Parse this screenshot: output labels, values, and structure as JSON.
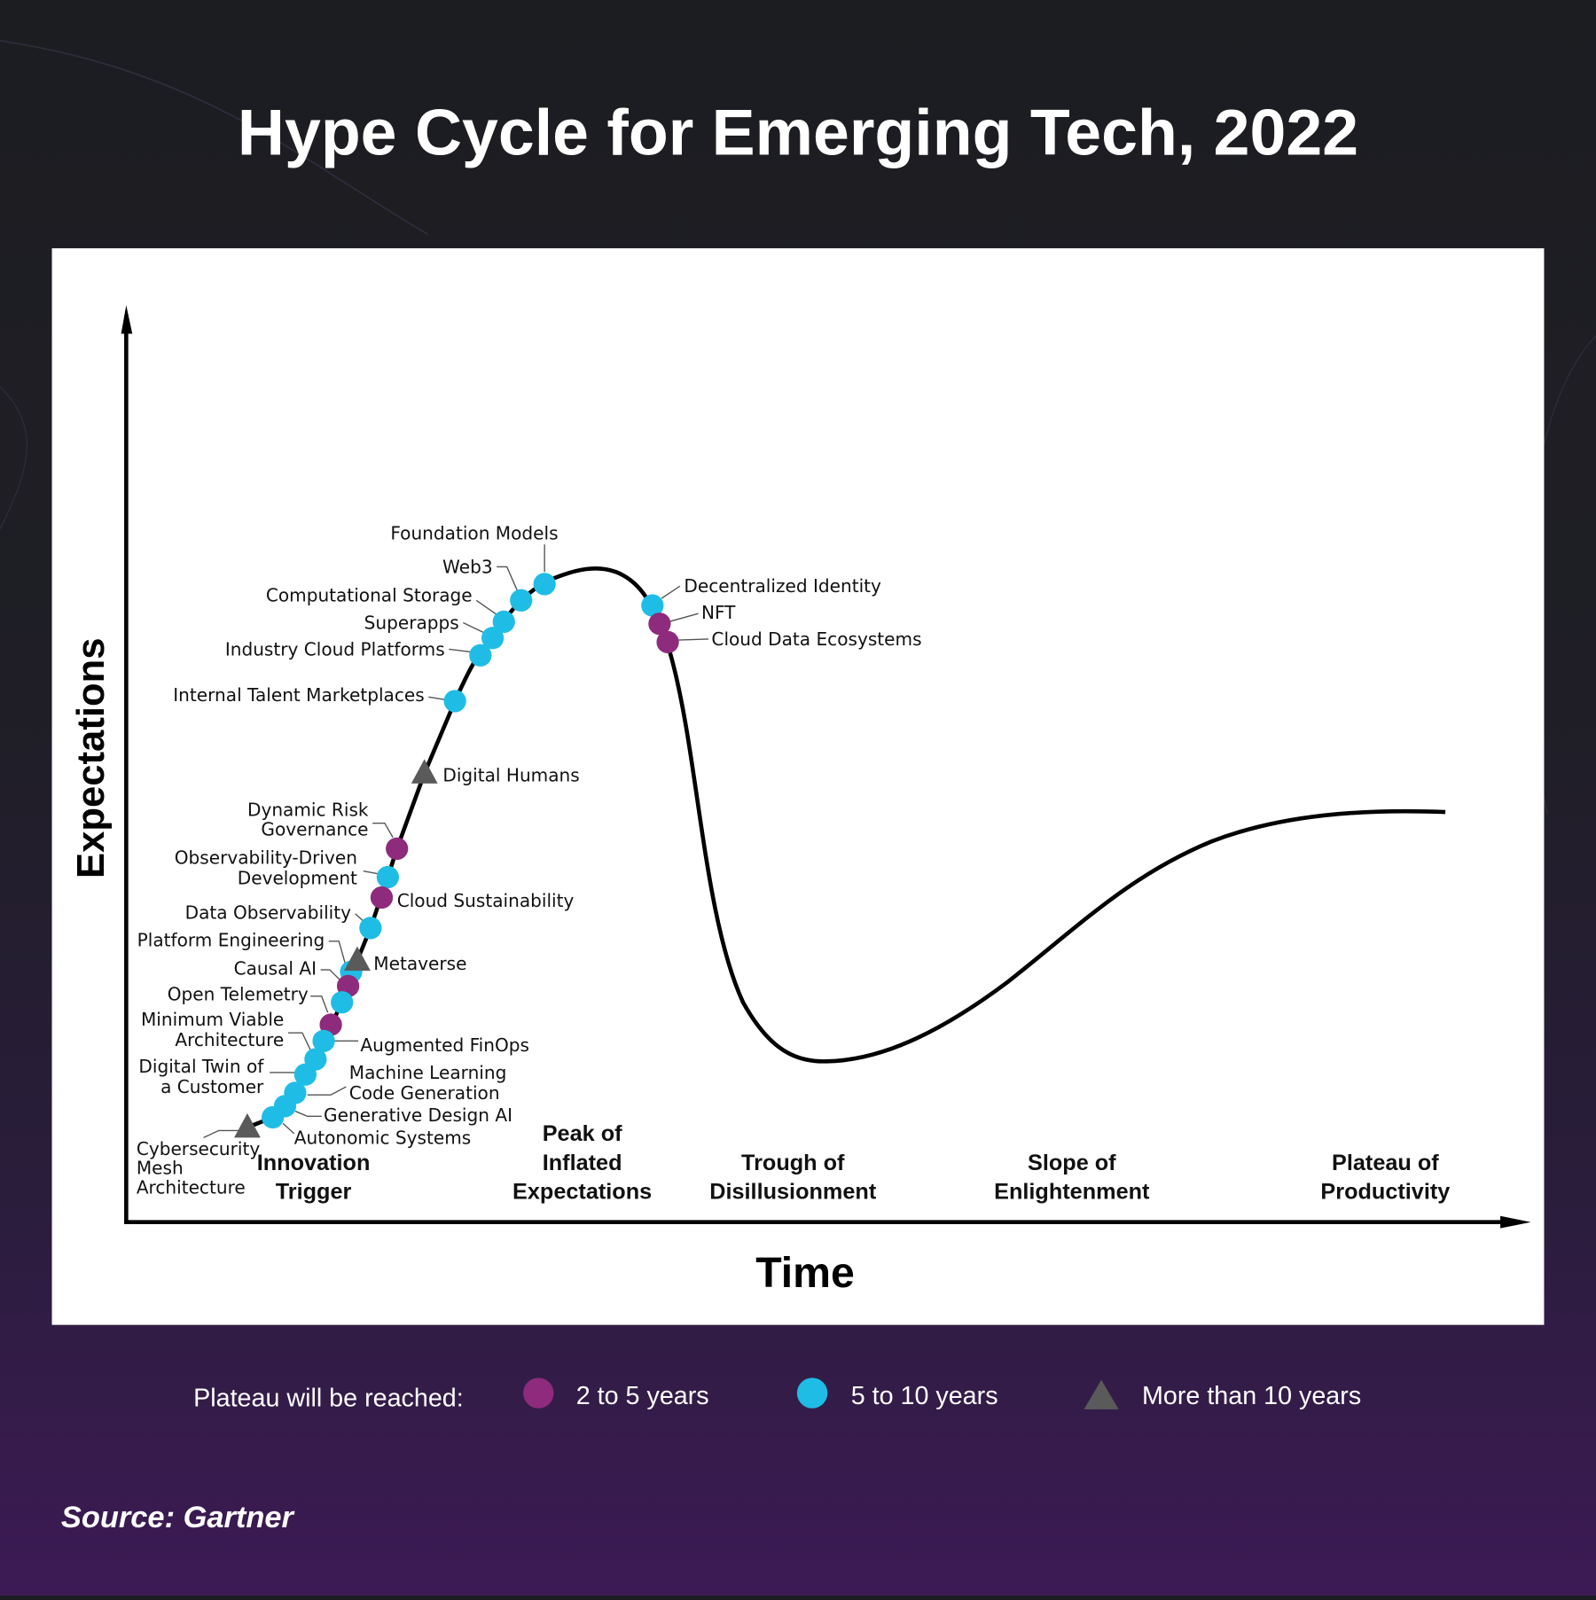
{
  "title": "Hype Cycle for Emerging Tech, 2022",
  "source": "Source: Gartner",
  "colors": {
    "two_to_five": "#8e2b7d",
    "five_to_ten": "#1fbde6",
    "more_than_ten": "#5a5a5a",
    "curve": "#000000"
  },
  "legend": {
    "heading": "Plateau will be reached:",
    "items": [
      {
        "label": "2 to 5 years",
        "marker": "circle",
        "color": "#8e2b7d"
      },
      {
        "label": "5 to 10 years",
        "marker": "circle",
        "color": "#1fbde6"
      },
      {
        "label": "More than 10 years",
        "marker": "triangle",
        "color": "#5a5a5a"
      }
    ]
  },
  "chart_data": {
    "type": "hype-cycle",
    "xlabel": "Time",
    "ylabel": "Expectations",
    "phases": [
      "Innovation Trigger",
      "Peak of Inflated Expectations",
      "Trough of Disillusionment",
      "Slope of Enlightenment",
      "Plateau of Productivity"
    ],
    "items": [
      {
        "name": "Foundation Models",
        "plateau": "5 to 10 years"
      },
      {
        "name": "Web3",
        "plateau": "5 to 10 years"
      },
      {
        "name": "Computational Storage",
        "plateau": "5 to 10 years"
      },
      {
        "name": "Superapps",
        "plateau": "5 to 10 years"
      },
      {
        "name": "Industry Cloud Platforms",
        "plateau": "5 to 10 years"
      },
      {
        "name": "Internal Talent Marketplaces",
        "plateau": "5 to 10 years"
      },
      {
        "name": "Digital Humans",
        "plateau": "More than 10 years"
      },
      {
        "name": "Dynamic Risk Governance",
        "plateau": "2 to 5 years"
      },
      {
        "name": "Observability-Driven Development",
        "plateau": "5 to 10 years"
      },
      {
        "name": "Cloud Sustainability",
        "plateau": "2 to 5 years"
      },
      {
        "name": "Data Observability",
        "plateau": "5 to 10 years"
      },
      {
        "name": "Platform Engineering",
        "plateau": "5 to 10 years"
      },
      {
        "name": "Metaverse",
        "plateau": "More than 10 years"
      },
      {
        "name": "Causal AI",
        "plateau": "2 to 5 years"
      },
      {
        "name": "Open Telemetry",
        "plateau": "5 to 10 years"
      },
      {
        "name": "Minimum Viable Architecture",
        "plateau": "2 to 5 years"
      },
      {
        "name": "Augmented FinOps",
        "plateau": "5 to 10 years"
      },
      {
        "name": "Digital Twin of a Customer",
        "plateau": "5 to 10 years"
      },
      {
        "name": "Machine Learning Code Generation",
        "plateau": "5 to 10 years"
      },
      {
        "name": "Generative Design AI",
        "plateau": "5 to 10 years"
      },
      {
        "name": "Autonomic Systems",
        "plateau": "5 to 10 years"
      },
      {
        "name": "Cybersecurity Mesh Architecture",
        "plateau": "More than 10 years"
      },
      {
        "name": "Decentralized Identity",
        "plateau": "5 to 10 years"
      },
      {
        "name": "NFT",
        "plateau": "2 to 5 years"
      },
      {
        "name": "Cloud Data Ecosystems",
        "plateau": "2 to 5 years"
      }
    ]
  }
}
